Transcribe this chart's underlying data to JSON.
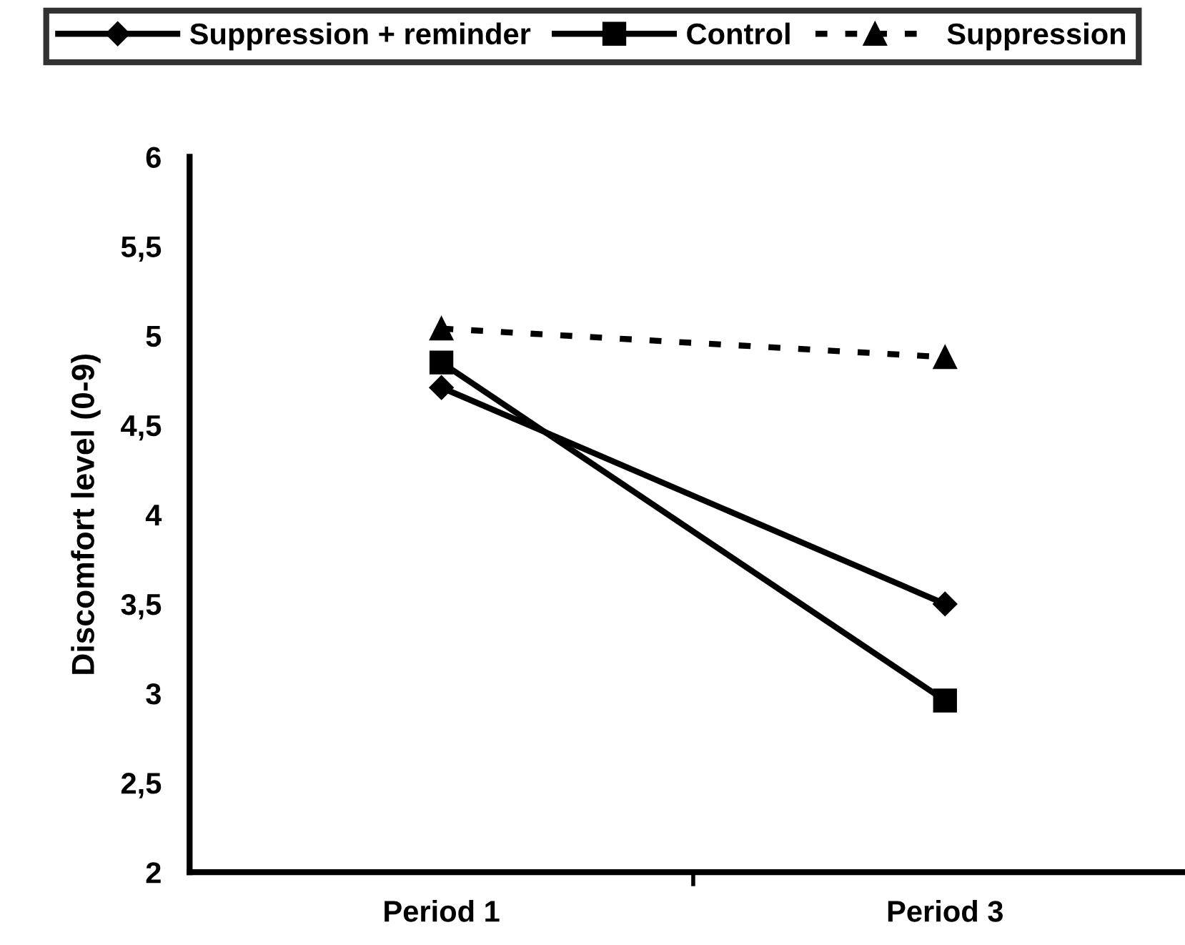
{
  "chart_data": {
    "type": "line",
    "ylabel": "Discomfort level (0-9)",
    "categories": [
      "Period 1",
      "Period 3"
    ],
    "series": [
      {
        "name": "Suppression + reminder",
        "color": "#000000",
        "values": [
          4.71,
          3.5
        ],
        "marker": "diamond",
        "line_style": "solid"
      },
      {
        "name": "Control",
        "color": "#000000",
        "values": [
          4.85,
          2.96
        ],
        "marker": "square",
        "line_style": "solid"
      },
      {
        "name": "Suppression",
        "color": "#000000",
        "values": [
          5.04,
          4.88
        ],
        "marker": "triangle",
        "line_style": "dashed"
      }
    ],
    "ylim": [
      2,
      6
    ],
    "yticks": [
      2,
      {
        "value": 2.5,
        "label": "2,5"
      },
      3,
      {
        "value": 3.5,
        "label": "3,5"
      },
      4,
      {
        "value": 4.5,
        "label": "4,5"
      },
      5,
      {
        "value": 5.5,
        "label": "5,5"
      },
      6
    ],
    "grid": false,
    "legend": "top"
  }
}
